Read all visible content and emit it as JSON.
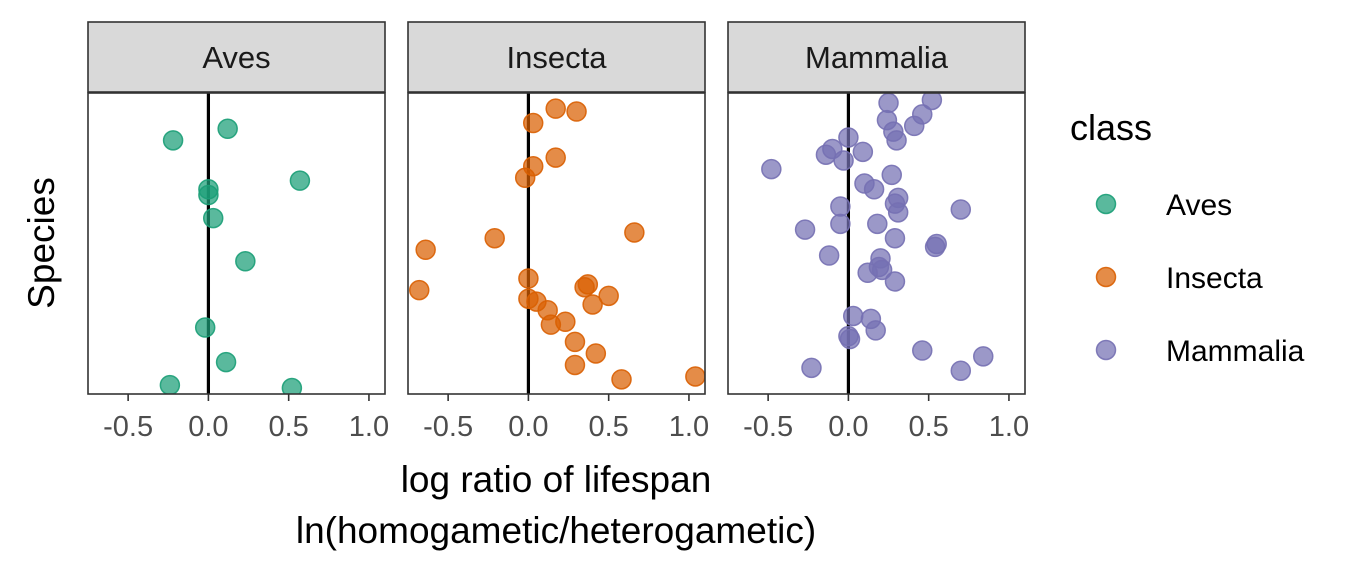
{
  "chart_data": {
    "type": "scatter",
    "facet_by": "class",
    "xlabel_line1": "log ratio of lifespan",
    "xlabel_line2": "ln(homogametic/heterogametic)",
    "ylabel": "Species",
    "xlim": [
      -0.75,
      1.1
    ],
    "xticks": [
      -0.5,
      0.0,
      0.5,
      1.0
    ],
    "xtick_labels": [
      "-0.5",
      "0.0",
      "0.5",
      "1.0"
    ],
    "y_axis": "species rank (no tick labels)",
    "ylim": [
      0,
      100
    ],
    "reference_line_x": 0,
    "grid": false,
    "legend": {
      "title": "class",
      "position": "right",
      "entries": [
        {
          "label": "Aves",
          "color": "#1B9E77"
        },
        {
          "label": "Insecta",
          "color": "#D95F02"
        },
        {
          "label": "Mammalia",
          "color": "#7570B3"
        }
      ]
    },
    "panels": [
      {
        "name": "Aves",
        "color": "#1B9E77",
        "points": [
          {
            "x": 0.12,
            "y": 90
          },
          {
            "x": -0.22,
            "y": 86
          },
          {
            "x": 0.57,
            "y": 72
          },
          {
            "x": 0.0,
            "y": 69
          },
          {
            "x": 0.0,
            "y": 67
          },
          {
            "x": 0.03,
            "y": 59
          },
          {
            "x": 0.23,
            "y": 44
          },
          {
            "x": -0.02,
            "y": 21
          },
          {
            "x": 0.11,
            "y": 9
          },
          {
            "x": -0.24,
            "y": 1
          },
          {
            "x": 0.52,
            "y": 0
          }
        ]
      },
      {
        "name": "Insecta",
        "color": "#D95F02",
        "points": [
          {
            "x": 0.17,
            "y": 97
          },
          {
            "x": 0.3,
            "y": 96
          },
          {
            "x": 0.03,
            "y": 92
          },
          {
            "x": 0.17,
            "y": 80
          },
          {
            "x": 0.03,
            "y": 77
          },
          {
            "x": -0.02,
            "y": 73
          },
          {
            "x": 0.66,
            "y": 54
          },
          {
            "x": -0.21,
            "y": 52
          },
          {
            "x": -0.64,
            "y": 48
          },
          {
            "x": 0.0,
            "y": 38
          },
          {
            "x": 0.37,
            "y": 36
          },
          {
            "x": 0.35,
            "y": 35
          },
          {
            "x": -0.68,
            "y": 34
          },
          {
            "x": 0.5,
            "y": 32
          },
          {
            "x": 0.0,
            "y": 31
          },
          {
            "x": 0.05,
            "y": 30
          },
          {
            "x": 0.4,
            "y": 29
          },
          {
            "x": 0.12,
            "y": 27
          },
          {
            "x": 0.23,
            "y": 23
          },
          {
            "x": 0.14,
            "y": 22
          },
          {
            "x": 0.29,
            "y": 16
          },
          {
            "x": 0.42,
            "y": 12
          },
          {
            "x": 0.29,
            "y": 8
          },
          {
            "x": 1.04,
            "y": 4
          },
          {
            "x": 0.58,
            "y": 3
          }
        ]
      },
      {
        "name": "Mammalia",
        "color": "#7570B3",
        "points": [
          {
            "x": 0.25,
            "y": 99
          },
          {
            "x": 0.52,
            "y": 100
          },
          {
            "x": 0.46,
            "y": 95
          },
          {
            "x": 0.24,
            "y": 93
          },
          {
            "x": 0.41,
            "y": 91
          },
          {
            "x": 0.28,
            "y": 89
          },
          {
            "x": 0.0,
            "y": 87
          },
          {
            "x": 0.3,
            "y": 86
          },
          {
            "x": -0.1,
            "y": 83
          },
          {
            "x": 0.09,
            "y": 82
          },
          {
            "x": -0.14,
            "y": 81
          },
          {
            "x": -0.03,
            "y": 79
          },
          {
            "x": -0.48,
            "y": 76
          },
          {
            "x": 0.27,
            "y": 74
          },
          {
            "x": 0.1,
            "y": 71
          },
          {
            "x": 0.16,
            "y": 69
          },
          {
            "x": 0.31,
            "y": 66
          },
          {
            "x": 0.29,
            "y": 64
          },
          {
            "x": -0.05,
            "y": 63
          },
          {
            "x": 0.7,
            "y": 62
          },
          {
            "x": 0.31,
            "y": 61
          },
          {
            "x": -0.05,
            "y": 57
          },
          {
            "x": 0.18,
            "y": 57
          },
          {
            "x": -0.27,
            "y": 55
          },
          {
            "x": 0.29,
            "y": 52
          },
          {
            "x": 0.55,
            "y": 50
          },
          {
            "x": 0.54,
            "y": 49
          },
          {
            "x": -0.12,
            "y": 46
          },
          {
            "x": 0.2,
            "y": 45
          },
          {
            "x": 0.19,
            "y": 42
          },
          {
            "x": 0.21,
            "y": 41
          },
          {
            "x": 0.12,
            "y": 40
          },
          {
            "x": 0.29,
            "y": 37
          },
          {
            "x": 0.03,
            "y": 25
          },
          {
            "x": 0.14,
            "y": 24
          },
          {
            "x": 0.17,
            "y": 20
          },
          {
            "x": 0.0,
            "y": 18
          },
          {
            "x": 0.01,
            "y": 17
          },
          {
            "x": 0.46,
            "y": 13
          },
          {
            "x": 0.84,
            "y": 11
          },
          {
            "x": -0.23,
            "y": 7
          },
          {
            "x": 0.7,
            "y": 6
          }
        ]
      }
    ]
  }
}
